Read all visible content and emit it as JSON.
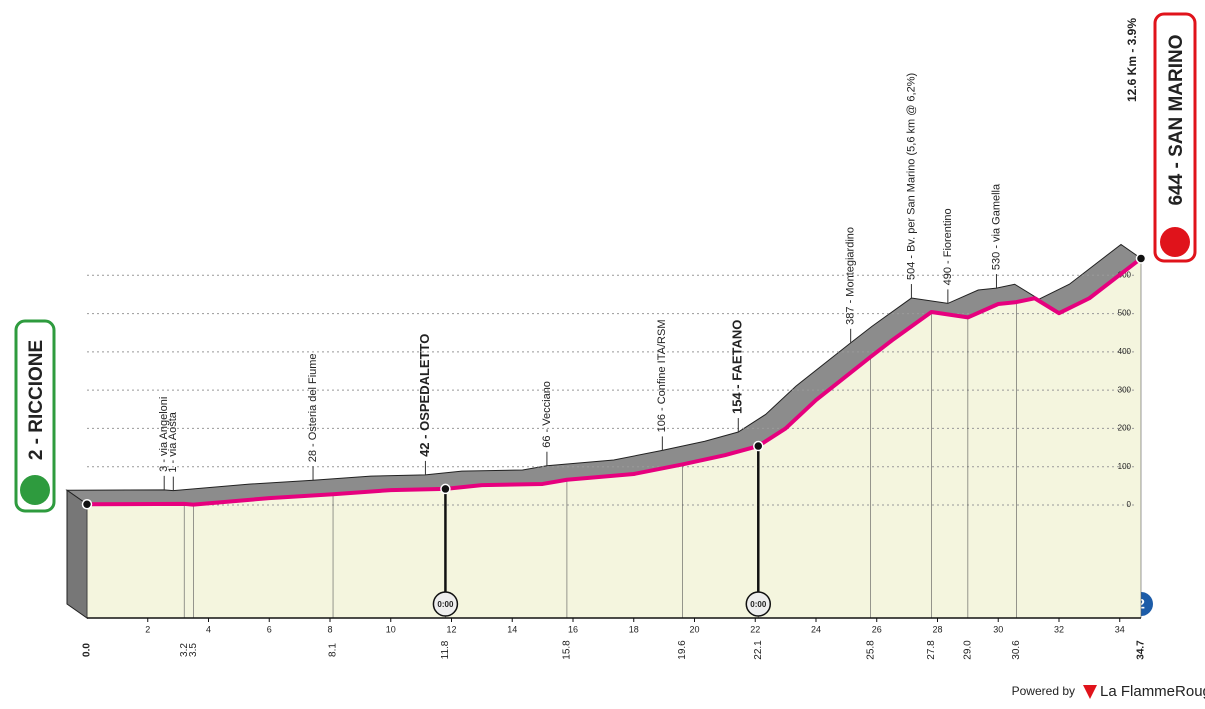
{
  "chart_data": {
    "type": "profile",
    "start": "2 - RICCIONE",
    "finish": "644 - SAN MARINO",
    "final_climb": "12.6 Km - 3.9%",
    "stage_badge": "2",
    "x": [
      0,
      3.2,
      3.5,
      6,
      8.1,
      10,
      11.8,
      13,
      15,
      15.8,
      18,
      19.6,
      21,
      22.1,
      23,
      24,
      25.8,
      26.5,
      27.8,
      29.0,
      30,
      30.6,
      31.2,
      32,
      33,
      34.7
    ],
    "values": [
      2,
      3,
      1,
      18,
      28,
      39,
      42,
      52,
      55,
      66,
      81,
      106,
      130,
      154,
      200,
      274,
      387,
      430,
      504,
      490,
      525,
      530,
      540,
      501,
      540,
      644
    ],
    "color": "#e6007e",
    "band_color": "#8c8c8c",
    "fill_color": "#f4f5de",
    "xlim": [
      0,
      34.7
    ],
    "xticks": [
      2,
      4,
      6,
      8,
      10,
      12,
      14,
      16,
      18,
      20,
      22,
      24,
      26,
      28,
      30,
      32,
      34
    ],
    "km_marks": [
      {
        "value": 0,
        "label": "0.0"
      },
      3.2,
      3.5,
      8.1,
      11.8,
      15.8,
      19.6,
      22.1,
      25.8,
      27.8,
      {
        "value": 29,
        "label": "29.0"
      },
      30.6,
      34.7
    ],
    "ylim": [
      0,
      700
    ],
    "yticks": [
      0,
      100,
      200,
      300,
      400,
      500,
      600
    ],
    "grid": true,
    "waypoints": [
      {
        "km": 3.2,
        "label": "3 - via Angeloni"
      },
      {
        "km": 3.5,
        "label": "1 - via Aosta"
      },
      {
        "km": 8.1,
        "label": "28 - Osteria del Fiume"
      },
      {
        "km": 11.8,
        "label": "42 - OSPEDALETTO",
        "bold": true
      },
      {
        "km": 15.8,
        "label": "66 - Vecciano"
      },
      {
        "km": 19.6,
        "label": "106 - Confine ITA/RSM"
      },
      {
        "km": 22.1,
        "label": "154 - FAETANO",
        "bold": true
      },
      {
        "km": 25.8,
        "label": "387 - Montegiardino"
      },
      {
        "km": 27.8,
        "label": "504 - Bv. per San Marino (5,6 km @ 6,2%)"
      },
      {
        "km": 29.0,
        "label": "490 - Fiorentino"
      },
      {
        "km": 30.6,
        "label": "530 - via Gamella"
      }
    ],
    "timers": [
      {
        "km": 11.8,
        "label": "0:00"
      },
      {
        "km": 22.1,
        "label": "0:00"
      }
    ],
    "footer": {
      "prefix": "Powered by",
      "brand": "La FlammeRouge"
    }
  }
}
